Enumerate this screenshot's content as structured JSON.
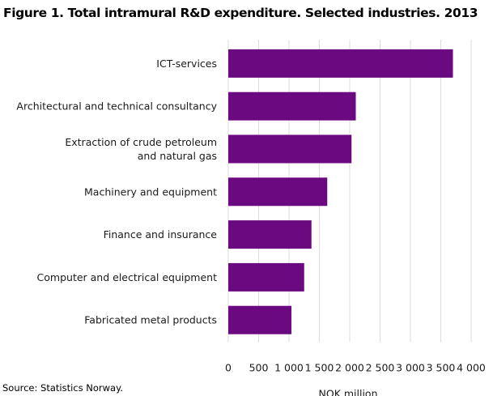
{
  "title": "Figure 1. Total intramural R&D expenditure. Selected industries. 2013",
  "source": "Source: Statistics Norway.",
  "chart_data": {
    "type": "bar",
    "orientation": "horizontal",
    "categories": [
      [
        "ICT-services"
      ],
      [
        "Architectural and technical consultancy"
      ],
      [
        "Extraction of crude petroleum",
        "and natural gas"
      ],
      [
        "Machinery and equipment"
      ],
      [
        "Finance and insurance"
      ],
      [
        "Computer and electrical equipment"
      ],
      [
        "Fabricated metal products"
      ]
    ],
    "values": [
      3700,
      2100,
      2030,
      1630,
      1370,
      1250,
      1040
    ],
    "xlabel": "NOK million",
    "xlim": [
      0,
      4000
    ],
    "xticks": [
      0,
      500,
      1000,
      1500,
      2000,
      2500,
      3000,
      3500,
      4000
    ],
    "xtick_labels": [
      "0",
      "500",
      "1 000",
      "1 500",
      "2 000",
      "2 500",
      "3 000",
      "3 500",
      "4 000"
    ],
    "bar_color": "#6b0a80",
    "grid": true,
    "gridline_color": "#dcdcdc"
  }
}
